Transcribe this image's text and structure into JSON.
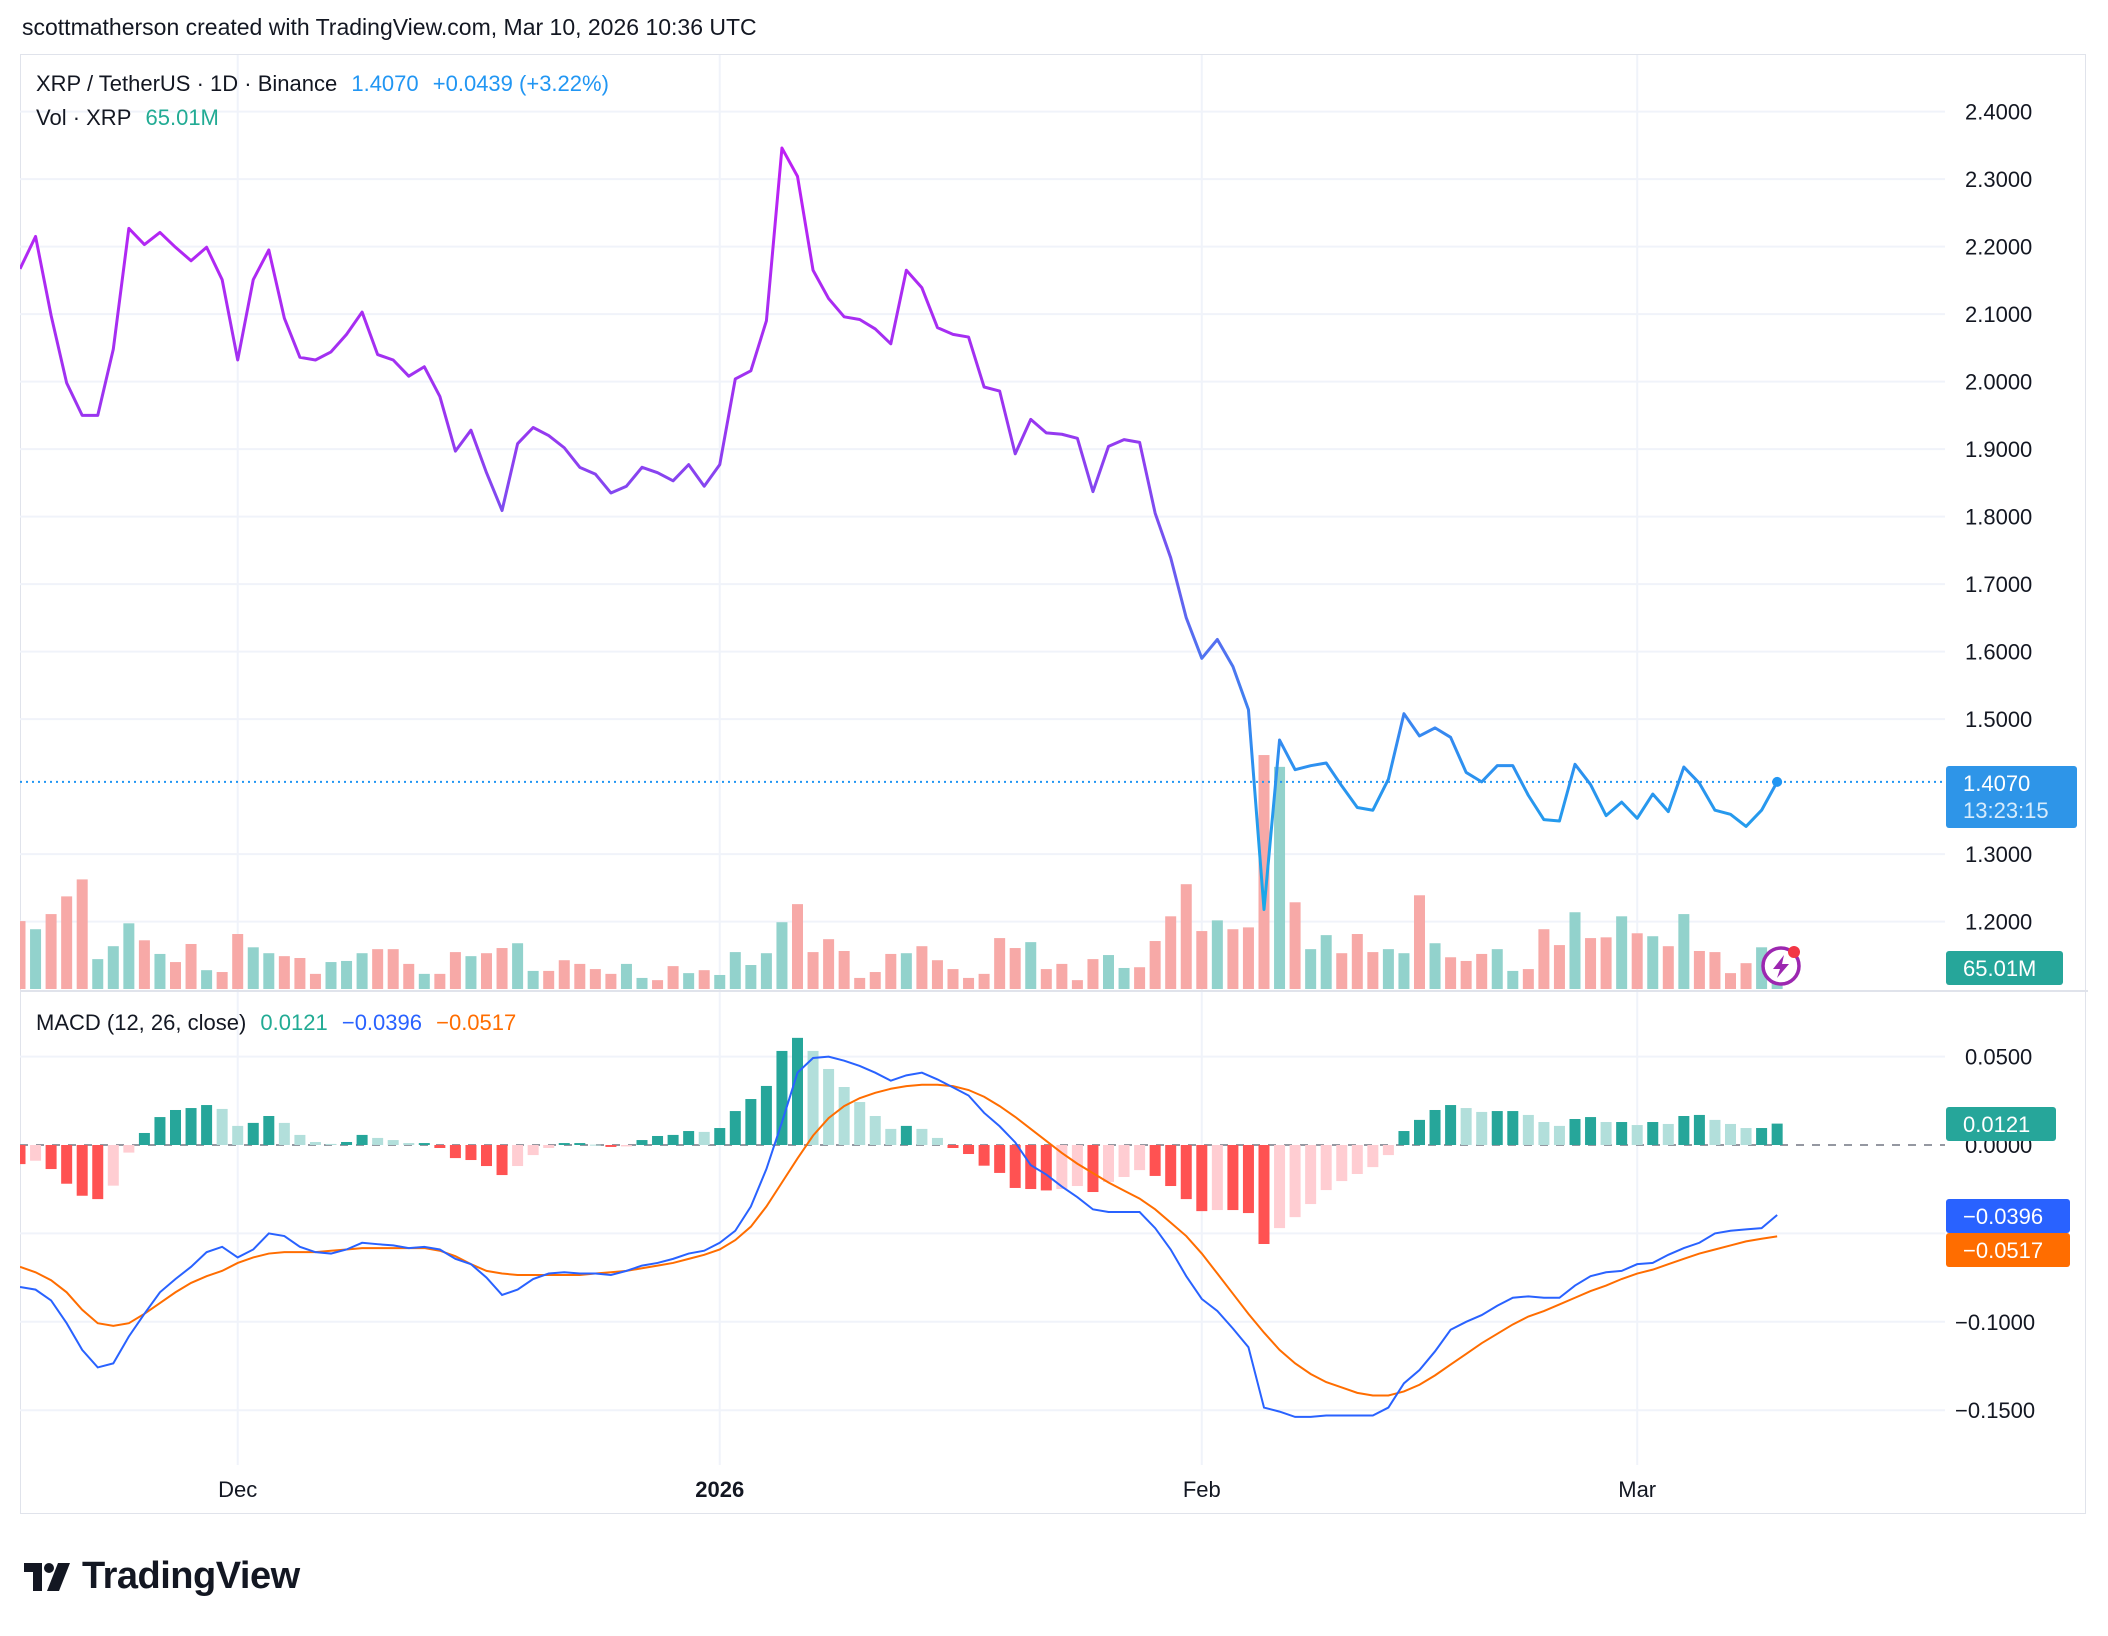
{
  "header": {
    "attribution": "scottmatherson created with TradingView.com, Mar 10, 2026 10:36 UTC"
  },
  "legend": {
    "symbol": "XRP / TetherUS · 1D · Binance",
    "last": "1.4070",
    "change": "+0.0439 (+3.22%)",
    "vol_label": "Vol · XRP",
    "vol_value": "65.01M",
    "macd_label": "MACD (12, 26, close)",
    "macd_hist": "0.0121",
    "macd_line": "−0.0396",
    "macd_signal": "−0.0517"
  },
  "price_axis": {
    "ticks": [
      "2.4000",
      "2.3000",
      "2.2000",
      "2.1000",
      "2.0000",
      "1.9000",
      "1.8000",
      "1.7000",
      "1.6000",
      "1.5000",
      "1.3000",
      "1.2000"
    ],
    "last_price_label": "1.4070",
    "countdown": "13:23:15",
    "volume_label": "65.01M"
  },
  "macd_axis": {
    "ticks": [
      "0.0500",
      "0.0000",
      "−0.1000",
      "−0.1500"
    ],
    "hist_label": "0.0121",
    "macd_label": "−0.0396",
    "signal_label": "−0.0517"
  },
  "time_axis": {
    "labels": [
      {
        "text": "Dec",
        "date": "2025-12-01",
        "bold": false
      },
      {
        "text": "2026",
        "date": "2026-01-01",
        "bold": true
      },
      {
        "text": "Feb",
        "date": "2026-02-01",
        "bold": false
      },
      {
        "text": "Mar",
        "date": "2026-03-01",
        "bold": false
      }
    ]
  },
  "brand": {
    "logo_text": "TradingView"
  },
  "colors": {
    "price_line_top": "#c01ff5",
    "price_line_bottom": "#14aee8",
    "last_price": "#2196f3",
    "volume_up": "#92d2cc",
    "volume_down": "#f7a9a7",
    "macd_line": "#2962ff",
    "signal_line": "#ff6d00",
    "hist_up_strong": "#26a69a",
    "hist_up_weak": "#b2dfdb",
    "hist_down_strong": "#ff5252",
    "hist_down_weak": "#ffcdd2"
  },
  "chart_data": [
    {
      "type": "line",
      "title": "XRP / TetherUS · 1D · Binance",
      "ylim": [
        1.15,
        2.45
      ],
      "y_scale_side": "right",
      "grid": true,
      "dates": [
        "2025-11-17",
        "2025-11-18",
        "2025-11-19",
        "2025-11-20",
        "2025-11-21",
        "2025-11-22",
        "2025-11-23",
        "2025-11-24",
        "2025-11-25",
        "2025-11-26",
        "2025-11-27",
        "2025-11-28",
        "2025-11-29",
        "2025-11-30",
        "2025-12-01",
        "2025-12-02",
        "2025-12-03",
        "2025-12-04",
        "2025-12-05",
        "2025-12-06",
        "2025-12-07",
        "2025-12-08",
        "2025-12-09",
        "2025-12-10",
        "2025-12-11",
        "2025-12-12",
        "2025-12-13",
        "2025-12-14",
        "2025-12-15",
        "2025-12-16",
        "2025-12-17",
        "2025-12-18",
        "2025-12-19",
        "2025-12-20",
        "2025-12-21",
        "2025-12-22",
        "2025-12-23",
        "2025-12-24",
        "2025-12-25",
        "2025-12-26",
        "2025-12-27",
        "2025-12-28",
        "2025-12-29",
        "2025-12-30",
        "2025-12-31",
        "2026-01-01",
        "2026-01-02",
        "2026-01-03",
        "2026-01-04",
        "2026-01-05",
        "2026-01-06",
        "2026-01-07",
        "2026-01-08",
        "2026-01-09",
        "2026-01-10",
        "2026-01-11",
        "2026-01-12",
        "2026-01-13",
        "2026-01-14",
        "2026-01-15",
        "2026-01-16",
        "2026-01-17",
        "2026-01-18",
        "2026-01-19",
        "2026-01-20",
        "2026-01-21",
        "2026-01-22",
        "2026-01-23",
        "2026-01-24",
        "2026-01-25",
        "2026-01-26",
        "2026-01-27",
        "2026-01-28",
        "2026-01-29",
        "2026-01-30",
        "2026-01-31",
        "2026-02-01",
        "2026-02-02",
        "2026-02-03",
        "2026-02-04",
        "2026-02-05",
        "2026-02-06",
        "2026-02-07",
        "2026-02-08",
        "2026-02-09",
        "2026-02-10",
        "2026-02-11",
        "2026-02-12",
        "2026-02-13",
        "2026-02-14",
        "2026-02-15",
        "2026-02-16",
        "2026-02-17",
        "2026-02-18",
        "2026-02-19",
        "2026-02-20",
        "2026-02-21",
        "2026-02-22",
        "2026-02-23",
        "2026-02-24",
        "2026-02-25",
        "2026-02-26",
        "2026-02-27",
        "2026-02-28",
        "2026-03-01",
        "2026-03-02",
        "2026-03-03",
        "2026-03-04",
        "2026-03-05",
        "2026-03-06",
        "2026-03-07",
        "2026-03-08",
        "2026-03-09",
        "2026-03-10"
      ],
      "close": [
        2.167,
        2.215,
        2.098,
        1.998,
        1.95,
        1.95,
        2.048,
        2.227,
        2.203,
        2.221,
        2.199,
        2.179,
        2.199,
        2.151,
        2.032,
        2.151,
        2.195,
        2.094,
        2.036,
        2.032,
        2.044,
        2.07,
        2.103,
        2.04,
        2.032,
        2.008,
        2.022,
        1.978,
        1.897,
        1.928,
        1.865,
        1.809,
        1.908,
        1.932,
        1.92,
        1.902,
        1.873,
        1.863,
        1.835,
        1.845,
        1.873,
        1.865,
        1.853,
        1.877,
        1.845,
        1.877,
        2.004,
        2.016,
        2.09,
        2.346,
        2.304,
        2.165,
        2.123,
        2.096,
        2.092,
        2.078,
        2.056,
        2.165,
        2.139,
        2.08,
        2.07,
        2.066,
        1.992,
        1.986,
        1.893,
        1.944,
        1.924,
        1.922,
        1.916,
        1.837,
        1.904,
        1.914,
        1.91,
        1.805,
        1.739,
        1.65,
        1.59,
        1.618,
        1.578,
        1.514,
        1.218,
        1.469,
        1.425,
        1.431,
        1.435,
        1.401,
        1.369,
        1.365,
        1.411,
        1.508,
        1.475,
        1.487,
        1.473,
        1.421,
        1.407,
        1.431,
        1.431,
        1.387,
        1.351,
        1.349,
        1.433,
        1.403,
        1.357,
        1.377,
        1.353,
        1.389,
        1.363,
        1.429,
        1.405,
        1.365,
        1.359,
        1.341,
        1.365,
        1.407
      ],
      "last_value": 1.407
    },
    {
      "type": "bar",
      "series_label": "Vol · XRP",
      "unit": "M",
      "values": [
        184,
        162,
        203,
        251,
        297,
        81,
        116,
        178,
        132,
        95,
        73,
        122,
        51,
        46,
        149,
        113,
        97,
        89,
        84,
        41,
        73,
        76,
        97,
        108,
        108,
        68,
        41,
        41,
        100,
        89,
        97,
        111,
        124,
        49,
        49,
        78,
        68,
        54,
        41,
        68,
        30,
        24,
        62,
        43,
        51,
        38,
        100,
        65,
        97,
        181,
        230,
        100,
        135,
        103,
        30,
        46,
        95,
        97,
        116,
        78,
        54,
        30,
        41,
        138,
        111,
        127,
        54,
        68,
        24,
        81,
        92,
        57,
        59,
        130,
        197,
        284,
        157,
        186,
        162,
        167,
        634,
        602,
        235,
        108,
        146,
        97,
        149,
        100,
        108,
        97,
        254,
        124,
        86,
        76,
        95,
        108,
        49,
        54,
        162,
        119,
        208,
        138,
        140,
        197,
        151,
        143,
        116,
        203,
        103,
        100,
        43,
        70,
        113,
        65.01
      ],
      "direction": [
        "d",
        "u",
        "d",
        "d",
        "d",
        "u",
        "u",
        "u",
        "d",
        "u",
        "d",
        "d",
        "u",
        "d",
        "d",
        "u",
        "u",
        "d",
        "d",
        "d",
        "u",
        "u",
        "u",
        "d",
        "d",
        "d",
        "u",
        "d",
        "d",
        "u",
        "d",
        "d",
        "u",
        "u",
        "d",
        "d",
        "d",
        "d",
        "d",
        "u",
        "u",
        "d",
        "d",
        "u",
        "d",
        "u",
        "u",
        "u",
        "u",
        "u",
        "d",
        "d",
        "d",
        "d",
        "d",
        "d",
        "d",
        "u",
        "d",
        "d",
        "d",
        "d",
        "d",
        "d",
        "d",
        "u",
        "d",
        "d",
        "d",
        "d",
        "u",
        "u",
        "d",
        "d",
        "d",
        "d",
        "d",
        "u",
        "d",
        "d",
        "d",
        "u",
        "d",
        "u",
        "u",
        "d",
        "d",
        "d",
        "u",
        "u",
        "d",
        "u",
        "d",
        "d",
        "d",
        "u",
        "u",
        "d",
        "d",
        "d",
        "u",
        "d",
        "d",
        "u",
        "d",
        "u",
        "d",
        "u",
        "d",
        "d",
        "d",
        "d",
        "u",
        "u"
      ],
      "last_value_label": "65.01M"
    },
    {
      "type": "line",
      "title": "MACD (12, 26, close)",
      "ylim": [
        -0.17,
        0.075
      ],
      "grid": true,
      "series": [
        {
          "name": "MACD",
          "values": [
            -0.0803,
            -0.0818,
            -0.0879,
            -0.1008,
            -0.1159,
            -0.1258,
            -0.1235,
            -0.1083,
            -0.0955,
            -0.0833,
            -0.0758,
            -0.0689,
            -0.0606,
            -0.0576,
            -0.0636,
            -0.0591,
            -0.05,
            -0.0515,
            -0.0576,
            -0.0606,
            -0.0614,
            -0.0591,
            -0.0553,
            -0.0561,
            -0.0568,
            -0.0583,
            -0.0576,
            -0.0591,
            -0.0644,
            -0.0674,
            -0.075,
            -0.0848,
            -0.0818,
            -0.0758,
            -0.0727,
            -0.072,
            -0.0727,
            -0.0727,
            -0.0735,
            -0.0712,
            -0.0682,
            -0.0667,
            -0.0644,
            -0.0614,
            -0.0598,
            -0.0553,
            -0.0485,
            -0.0348,
            -0.0136,
            0.0129,
            0.0409,
            0.0492,
            0.05,
            0.0477,
            0.0447,
            0.0409,
            0.0364,
            0.0394,
            0.0409,
            0.0371,
            0.0326,
            0.028,
            0.0182,
            0.0106,
            0.0015,
            -0.0114,
            -0.0167,
            -0.0235,
            -0.0295,
            -0.0364,
            -0.0379,
            -0.0379,
            -0.0379,
            -0.047,
            -0.0591,
            -0.0742,
            -0.0871,
            -0.0939,
            -0.1038,
            -0.1144,
            -0.1485,
            -0.1508,
            -0.1538,
            -0.1538,
            -0.153,
            -0.153,
            -0.153,
            -0.153,
            -0.1485,
            -0.1348,
            -0.1273,
            -0.1167,
            -0.1045,
            -0.1,
            -0.0962,
            -0.0909,
            -0.0864,
            -0.0856,
            -0.0864,
            -0.0864,
            -0.0795,
            -0.0742,
            -0.072,
            -0.0712,
            -0.0674,
            -0.0667,
            -0.0621,
            -0.0583,
            -0.0553,
            -0.05,
            -0.0485,
            -0.0477,
            -0.047,
            -0.0396
          ]
        },
        {
          "name": "Signal",
          "values": [
            -0.0689,
            -0.072,
            -0.0765,
            -0.0833,
            -0.0932,
            -0.1008,
            -0.1023,
            -0.1008,
            -0.0955,
            -0.0894,
            -0.0833,
            -0.078,
            -0.0742,
            -0.0712,
            -0.0667,
            -0.0636,
            -0.0614,
            -0.0606,
            -0.0606,
            -0.0606,
            -0.0598,
            -0.0591,
            -0.0583,
            -0.0583,
            -0.0583,
            -0.0583,
            -0.0583,
            -0.0598,
            -0.0629,
            -0.0674,
            -0.0712,
            -0.0727,
            -0.0735,
            -0.0735,
            -0.0735,
            -0.0735,
            -0.0735,
            -0.0727,
            -0.072,
            -0.0712,
            -0.0697,
            -0.0682,
            -0.0667,
            -0.0644,
            -0.0621,
            -0.0591,
            -0.0538,
            -0.0462,
            -0.0348,
            -0.0212,
            -0.0076,
            0.0053,
            0.0152,
            0.022,
            0.0265,
            0.0295,
            0.0318,
            0.0333,
            0.0341,
            0.0341,
            0.0333,
            0.0311,
            0.0273,
            0.022,
            0.0159,
            0.0091,
            0.0023,
            -0.0045,
            -0.0106,
            -0.0159,
            -0.0212,
            -0.0258,
            -0.0303,
            -0.0364,
            -0.0439,
            -0.0515,
            -0.0614,
            -0.0727,
            -0.0841,
            -0.0955,
            -0.1061,
            -0.1159,
            -0.1235,
            -0.1295,
            -0.1341,
            -0.1371,
            -0.1402,
            -0.1417,
            -0.1417,
            -0.1394,
            -0.1356,
            -0.1303,
            -0.1242,
            -0.1182,
            -0.1121,
            -0.1068,
            -0.1015,
            -0.097,
            -0.0939,
            -0.0902,
            -0.0864,
            -0.0826,
            -0.0795,
            -0.0758,
            -0.0727,
            -0.0705,
            -0.0674,
            -0.0644,
            -0.0614,
            -0.0591,
            -0.0568,
            -0.0545,
            -0.053,
            -0.0517
          ]
        },
        {
          "name": "Histogram",
          "values": [
            -0.0108,
            -0.0089,
            -0.0136,
            -0.0219,
            -0.0287,
            -0.0306,
            -0.023,
            -0.0043,
            0.0068,
            0.0158,
            0.0198,
            0.0209,
            0.0226,
            0.0204,
            0.0108,
            0.0125,
            0.0164,
            0.0125,
            0.0057,
            0.0017,
            0.0006,
            0.0017,
            0.0057,
            0.004,
            0.0028,
            0.0011,
            0.0011,
            -0.0017,
            -0.0074,
            -0.0085,
            -0.0119,
            -0.017,
            -0.0119,
            -0.0057,
            -0.0017,
            0.0011,
            0.0011,
            0.0002,
            -0.0011,
            -0.0008,
            0.0028,
            0.0051,
            0.0057,
            0.0079,
            0.0074,
            0.0096,
            0.0192,
            0.026,
            0.0334,
            0.0532,
            0.0606,
            0.0532,
            0.043,
            0.0328,
            0.0243,
            0.0164,
            0.0091,
            0.0108,
            0.0091,
            0.004,
            -0.0017,
            -0.0051,
            -0.0117,
            -0.0158,
            -0.0243,
            -0.0249,
            -0.0257,
            -0.0249,
            -0.0232,
            -0.0266,
            -0.0209,
            -0.0181,
            -0.0142,
            -0.0175,
            -0.0232,
            -0.0306,
            -0.0374,
            -0.0368,
            -0.0368,
            -0.0385,
            -0.056,
            -0.047,
            -0.0408,
            -0.0334,
            -0.0255,
            -0.0204,
            -0.0164,
            -0.0125,
            -0.0057,
            0.0079,
            0.0142,
            0.0198,
            0.0226,
            0.0209,
            0.0187,
            0.0192,
            0.0192,
            0.017,
            0.013,
            0.0108,
            0.0147,
            0.0158,
            0.013,
            0.013,
            0.0113,
            0.013,
            0.0119,
            0.0164,
            0.017,
            0.0142,
            0.0119,
            0.0096,
            0.0096,
            0.0121
          ]
        }
      ]
    }
  ]
}
